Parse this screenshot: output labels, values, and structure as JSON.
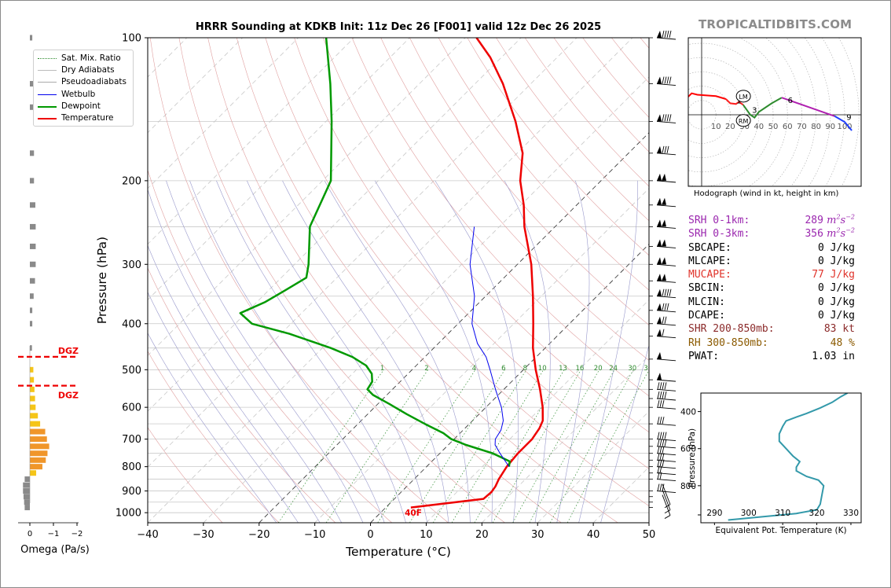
{
  "title": "HRRR Sounding at KDKB Init: 11z Dec 26 [F001] valid 12z Dec 26 2025",
  "site_credit": "TROPICALTIDBITS.COM",
  "hodograph_caption": "Hodograph (wind in kt, height in km)",
  "legend": [
    {
      "label": "Sat. Mix. Ratio",
      "color": "#2e8b2e",
      "style": "dotted",
      "width": 0.8
    },
    {
      "label": "Dry Adiabats",
      "color": "#bbbbbb",
      "style": "solid",
      "width": 0.8
    },
    {
      "label": "Pseudoadiabats",
      "color": "#aaaaaa",
      "style": "solid",
      "width": 0.8
    },
    {
      "label": "Wetbulb",
      "color": "#0000ee",
      "style": "solid",
      "width": 1
    },
    {
      "label": "Dewpoint",
      "color": "#009900",
      "style": "solid",
      "width": 2.5
    },
    {
      "label": "Temperature",
      "color": "#ee0000",
      "style": "solid",
      "width": 2.5
    }
  ],
  "indices": [
    {
      "label": "SRH 0-1km:",
      "value": "289",
      "unit": "m",
      "color": "#9b27af"
    },
    {
      "label": "SRH 0-3km:",
      "value": "356",
      "unit": "m",
      "color": "#9b27af"
    },
    {
      "label": "SBCAPE:",
      "value": "0 J/kg",
      "color": "#000000"
    },
    {
      "label": "MLCAPE:",
      "value": "0 J/kg",
      "color": "#000000"
    },
    {
      "label": "MUCAPE:",
      "value": "77 J/kg",
      "color": "#e0332a"
    },
    {
      "label": "SBCIN:",
      "value": "0 J/kg",
      "color": "#000000"
    },
    {
      "label": "MLCIN:",
      "value": "0 J/kg",
      "color": "#000000"
    },
    {
      "label": "DCAPE:",
      "value": "0 J/kg",
      "color": "#000000"
    },
    {
      "label": "SHR 200-850mb:",
      "value": "83 kt",
      "color": "#8b2a2a"
    },
    {
      "label": "RH 300-850mb:",
      "value": "48 %",
      "color": "#8b5a00"
    },
    {
      "label": "PWAT:",
      "value": "1.03 in",
      "color": "#000000"
    }
  ],
  "chart_data": [
    {
      "type": "line",
      "title": "HRRR Sounding at KDKB Init: 11z Dec 26 [F001] valid 12z Dec 26 2025",
      "xlabel": "Temperature (°C)",
      "ylabel": "Pressure (hPa)",
      "xlim": [
        -40,
        50
      ],
      "ylim": [
        1050,
        100
      ],
      "y_scale": "log",
      "x_ticks": [
        -40,
        -30,
        -20,
        -10,
        0,
        10,
        20,
        30,
        40,
        50
      ],
      "x_tick_labels": [
        "−40",
        "−30",
        "−20",
        "−10",
        "0",
        "10",
        "20",
        "30",
        "40",
        "50"
      ],
      "y_ticks": [
        100,
        200,
        300,
        400,
        500,
        600,
        700,
        800,
        900,
        1000
      ],
      "grid_pressures": [
        100,
        150,
        200,
        250,
        300,
        350,
        400,
        450,
        500,
        550,
        600,
        650,
        700,
        750,
        800,
        850,
        900,
        950,
        1000
      ],
      "skew_note": "isotherms skewed 45 degrees",
      "mixing_ratio_labels": [
        "1",
        "2",
        "4",
        "6",
        "8",
        "10",
        "13",
        "16",
        "20",
        "24",
        "30",
        "36"
      ],
      "surface_temp_label": "40F",
      "series": [
        {
          "name": "Temperature",
          "color": "#ee0000",
          "p": [
            975,
            935,
            905,
            880,
            850,
            800,
            750,
            700,
            665,
            640,
            600,
            550,
            500,
            450,
            400,
            350,
            300,
            250,
            225,
            200,
            175,
            150,
            125,
            110,
            100
          ],
          "t": [
            4.5,
            16,
            16.2,
            15.9,
            15.2,
            14.4,
            14,
            14,
            13.4,
            12.6,
            10.2,
            6.5,
            2.2,
            -2.2,
            -6.5,
            -11.5,
            -17.5,
            -25.5,
            -29.5,
            -34.5,
            -39,
            -46,
            -55,
            -62,
            -68
          ]
        },
        {
          "name": "Dewpoint",
          "color": "#009900",
          "p": [
            800,
            780,
            750,
            720,
            700,
            680,
            650,
            620,
            590,
            565,
            550,
            530,
            510,
            490,
            470,
            450,
            420,
            400,
            380,
            360,
            340,
            320,
            300,
            250,
            200,
            150,
            125,
            100
          ],
          "dp": [
            14.8,
            14,
            9.5,
            3.2,
            -0.5,
            -3,
            -8,
            -13,
            -18,
            -22.5,
            -24.5,
            -25,
            -26.5,
            -29,
            -33,
            -38.5,
            -48.5,
            -57,
            -61,
            -58.5,
            -57,
            -55.5,
            -57.5,
            -64,
            -68.5,
            -79,
            -86,
            -95
          ]
        },
        {
          "name": "Wetbulb",
          "color": "#0000ee",
          "p": [
            800,
            750,
            720,
            700,
            670,
            640,
            600,
            550,
            500,
            470,
            440,
            400,
            350,
            300,
            250
          ],
          "tw": [
            14.8,
            10.8,
            8.4,
            7.4,
            6.8,
            5.5,
            2.8,
            -1.5,
            -6,
            -9,
            -13,
            -17.5,
            -22,
            -28.5,
            -34.5
          ]
        }
      ]
    },
    {
      "type": "line",
      "title": "Hodograph (wind in kt, height in km)",
      "ring_labels": [
        "10",
        "20",
        "30",
        "40",
        "50",
        "60",
        "70",
        "80",
        "90",
        "100"
      ],
      "markers": [
        "LM",
        "RM"
      ],
      "height_labels": [
        "1",
        "2",
        "3",
        "6",
        "9"
      ],
      "storm_motion": {
        "LM": [
          27,
          13
        ],
        "RM": [
          27,
          -4
        ]
      },
      "series": [
        {
          "name": "0-1 km",
          "color": "#ff0000",
          "points": [
            [
              -14,
              5
            ],
            [
              -10,
              12
            ],
            [
              -7,
              15
            ],
            [
              -3,
              14
            ],
            [
              10,
              13
            ],
            [
              17,
              11
            ]
          ]
        },
        {
          "name": "1-3 km",
          "color": "#ff2020",
          "points": [
            [
              17,
              11
            ],
            [
              20,
              8
            ],
            [
              24,
              7.5
            ],
            [
              26,
              9
            ],
            [
              29,
              7
            ]
          ]
        },
        {
          "name": "3-6 km",
          "color": "#2e8b2e",
          "points": [
            [
              29,
              7
            ],
            [
              34,
              0
            ],
            [
              37,
              -2
            ],
            [
              40,
              2
            ],
            [
              49,
              8
            ],
            [
              56,
              12
            ]
          ]
        },
        {
          "name": "6-9 km",
          "color": "#b020b0",
          "points": [
            [
              56,
              12
            ],
            [
              76,
              5
            ],
            [
              93,
              -1
            ]
          ]
        },
        {
          "name": "9+ km",
          "color": "#1f3fff",
          "points": [
            [
              93,
              -1
            ],
            [
              100,
              -5
            ],
            [
              105,
              -11
            ]
          ]
        }
      ]
    },
    {
      "type": "bar",
      "xlabel": "Omega (Pa/s)",
      "x_tick_labels": [
        "0",
        "−1",
        "−2"
      ],
      "xlim": [
        0.2,
        -2.4
      ],
      "dgz_label": "DGZ",
      "dgz_pressure": [
        475,
        530
      ],
      "p": [
        100,
        125,
        140,
        175,
        200,
        225,
        250,
        275,
        300,
        325,
        350,
        375,
        400,
        450,
        500,
        525,
        550,
        575,
        600,
        625,
        650,
        675,
        700,
        725,
        750,
        775,
        800,
        825,
        850,
        875,
        900,
        925,
        950,
        975
      ],
      "omega": [
        -0.03,
        -0.07,
        -0.07,
        -0.08,
        -0.08,
        -0.12,
        -0.13,
        -0.13,
        -0.13,
        -0.11,
        -0.07,
        -0.03,
        -0.03,
        -0.02,
        -0.02,
        -0.03,
        -0.04,
        -0.05,
        -0.06,
        -0.1,
        -0.14,
        -0.23,
        -0.26,
        -0.3,
        -0.27,
        -0.24,
        -0.18,
        -0.07,
        0.05,
        0.08,
        0.08,
        0.07,
        0.06,
        0.05
      ],
      "colors": {
        "negative_weak": "#f5c518",
        "negative_strong": "#f0962a",
        "positive": "#8a8a8a"
      }
    },
    {
      "type": "line",
      "xlabel": "Equivalent Pot. Temperature (K)",
      "ylabel": "Pressure (hPa)",
      "xlim": [
        286,
        333
      ],
      "ylim": [
        1000,
        300
      ],
      "x_ticks": [
        290,
        300,
        310,
        320,
        330
      ],
      "y_ticks": [
        400,
        600,
        800
      ],
      "color": "#3399aa",
      "series": [
        {
          "name": "Theta-e",
          "p": [
            985,
            950,
            930,
            900,
            850,
            800,
            770,
            750,
            720,
            700,
            670,
            640,
            600,
            560,
            520,
            480,
            450,
            430,
            410,
            380,
            350,
            320,
            300
          ],
          "theta_e": [
            294,
            314,
            320,
            321,
            321.5,
            322,
            320.5,
            317,
            314,
            314,
            315,
            313,
            311,
            309,
            309,
            310,
            311,
            314,
            317,
            321,
            324.5,
            327,
            329
          ]
        }
      ]
    }
  ]
}
